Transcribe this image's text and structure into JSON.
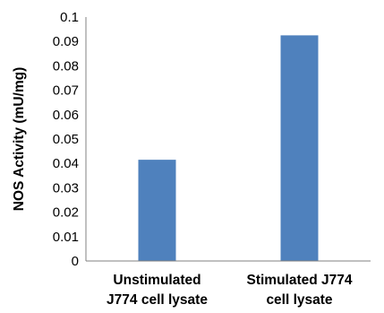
{
  "chart_data": {
    "type": "bar",
    "title": "",
    "xlabel": "",
    "ylabel": "NOS Activity (mU/mg)",
    "categories": [
      [
        "Unstimulated",
        "J774 cell lysate"
      ],
      [
        "Stimulated J774",
        "cell lysate"
      ]
    ],
    "values": [
      0.0415,
      0.0925
    ],
    "ylim": [
      0,
      0.1
    ],
    "yticks": [
      "0",
      "0.01",
      "0.02",
      "0.03",
      "0.04",
      "0.05",
      "0.06",
      "0.07",
      "0.08",
      "0.09",
      "0.1"
    ],
    "grid": false,
    "legend": "none",
    "bar_color": "#4f81bd",
    "axis_color": "#808080"
  }
}
